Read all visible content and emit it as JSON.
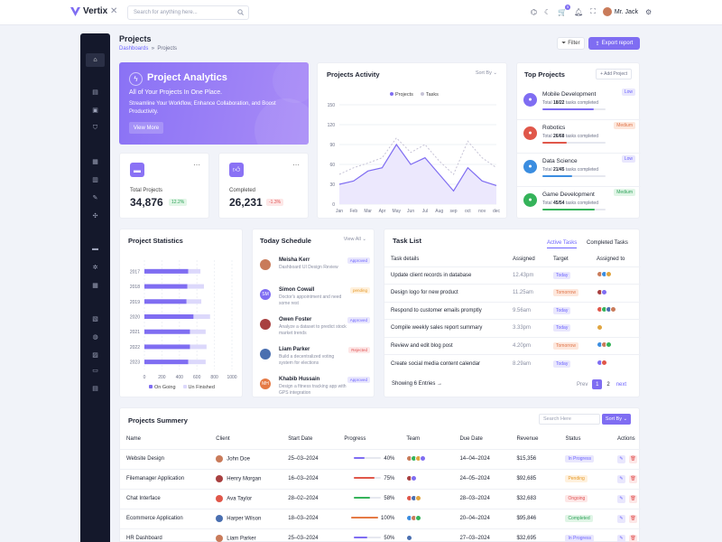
{
  "app": {
    "name": "Vertix",
    "search_placeholder": "Search for anything here...",
    "user": "Mr. Jack",
    "cart_count": "5"
  },
  "page": {
    "title": "Projects",
    "crumb_root": "Dashboards",
    "crumb_current": "Projects",
    "filter": "Filter",
    "export": "Export report"
  },
  "hero": {
    "title": "Project Analytics",
    "subtitle": "All of Your Projects In One Place.",
    "desc": "Streamline Your Workflow, Enhance Collaboration, and Boost Productivity.",
    "button": "View More"
  },
  "stats": [
    {
      "label": "Total Projects",
      "value": "34,876",
      "badge": "12.2%",
      "trend": "up"
    },
    {
      "label": "Completed",
      "value": "26,231",
      "badge": "-1.3%",
      "trend": "down"
    }
  ],
  "activity": {
    "title": "Projects Activity",
    "sort": "Sort By",
    "legend": [
      "Projects",
      "Tasks"
    ]
  },
  "chart_data": [
    {
      "type": "area",
      "title": "Projects Activity",
      "categories": [
        "Jan",
        "Feb",
        "Mar",
        "Apr",
        "May",
        "Jun",
        "Jul",
        "Aug",
        "sep",
        "oct",
        "nov",
        "dec"
      ],
      "ylim": [
        0,
        150
      ],
      "yticks": [
        0,
        30,
        60,
        90,
        120,
        150
      ],
      "series": [
        {
          "name": "Projects",
          "values": [
            30,
            35,
            50,
            55,
            90,
            60,
            70,
            45,
            20,
            55,
            35,
            28
          ],
          "color": "#7f6df2"
        },
        {
          "name": "Tasks",
          "values": [
            45,
            55,
            62,
            70,
            100,
            78,
            90,
            65,
            45,
            95,
            70,
            55
          ],
          "color": "#c6c3d6"
        }
      ],
      "legend": "top",
      "grid": true
    },
    {
      "type": "bar",
      "title": "Project Statistics",
      "orientation": "horizontal",
      "categories": [
        "2017",
        "2018",
        "2019",
        "2020",
        "2021",
        "2022",
        "2023"
      ],
      "xlim": [
        0,
        1000
      ],
      "xticks": [
        0,
        200,
        400,
        600,
        800,
        1000
      ],
      "series": [
        {
          "name": "On Going",
          "values": [
            500,
            490,
            480,
            560,
            520,
            520,
            500
          ],
          "color": "#7f6df2"
        },
        {
          "name": "Un Finished",
          "values": [
            640,
            680,
            650,
            750,
            700,
            710,
            700
          ],
          "color": "#dcd8fb"
        }
      ],
      "legend": "bottom",
      "grid": true
    }
  ],
  "top_projects": {
    "title": "Top Projects",
    "add": "+ Add Project",
    "items": [
      {
        "name": "Mobile Development",
        "total": "Total",
        "done": "18/22",
        "suffix": "tasks completed",
        "badge": "Low",
        "progress": 0.82,
        "color": "#7f6df2",
        "icon": "phone-icon"
      },
      {
        "name": "Robotics",
        "total": "Total",
        "done": "26/68",
        "suffix": "tasks completed",
        "badge": "Medium",
        "progress": 0.38,
        "color": "#e0574a",
        "icon": "robot-icon"
      },
      {
        "name": "Data Science",
        "total": "Total",
        "done": "21/45",
        "suffix": "tasks completed",
        "badge": "Low",
        "progress": 0.47,
        "color": "#3b8de0",
        "icon": "data-icon"
      },
      {
        "name": "Game Development",
        "total": "Total",
        "done": "45/54",
        "suffix": "tasks completed",
        "badge": "Medium",
        "progress": 0.83,
        "color": "#35b35a",
        "icon": "gamepad-icon"
      }
    ]
  },
  "stats_card": {
    "title": "Project Statistics",
    "legend": [
      "On Going",
      "Un Finished"
    ]
  },
  "schedule": {
    "title": "Today Schedule",
    "view": "View All",
    "items": [
      {
        "name": "Meisha Kerr",
        "desc": "Dashboard UI Design Review",
        "status": "Approved",
        "initials": "",
        "color": "#c97b5a"
      },
      {
        "name": "Simon Cowall",
        "desc": "Doctor's appointment and need some rest",
        "status": "pending",
        "initials": "SM",
        "color": "#7f6df2"
      },
      {
        "name": "Owen Foster",
        "desc": "Analyze a dataset to predict stock market trends",
        "status": "Approved",
        "initials": "",
        "color": "#a84040"
      },
      {
        "name": "Liam Parker",
        "desc": "Build a decentralized voting system for elections",
        "status": "Rejected",
        "initials": "",
        "color": "#4a6fb0"
      },
      {
        "name": "Khabib Hussain",
        "desc": "Design a fitness tracking app with GPS integration",
        "status": "Approved",
        "initials": "MH",
        "color": "#e57a45"
      }
    ]
  },
  "tasks": {
    "title": "Task List",
    "tab_active": "Active Tasks",
    "tab_other": "Completed Tasks",
    "headers": [
      "Task details",
      "Assigned",
      "Target",
      "Assigned to"
    ],
    "rows": [
      {
        "task": "Update client records in database",
        "time": "12.43pm",
        "target": "Today"
      },
      {
        "task": "Design logo for new product",
        "time": "11.25am",
        "target": "Tomorrow"
      },
      {
        "task": "Respond to customer emails promptly",
        "time": "9.56am",
        "target": "Today"
      },
      {
        "task": "Compile weekly sales report summary",
        "time": "3.33pm",
        "target": "Today"
      },
      {
        "task": "Review and edit blog post",
        "time": "4.20pm",
        "target": "Tomorrow"
      },
      {
        "task": "Create social media content calendar",
        "time": "8.29am",
        "target": "Today"
      }
    ],
    "showing": "Showing 6 Entries",
    "prev": "Prev",
    "next": "next",
    "pages": [
      "1",
      "2"
    ]
  },
  "summary": {
    "title": "Projects Summery",
    "search_placeholder": "Search Here",
    "sort": "Sort By",
    "headers": [
      "Name",
      "Client",
      "Start Date",
      "Progress",
      "Team",
      "Due Date",
      "Revenue",
      "Status",
      "Actions"
    ],
    "rows": [
      {
        "name": "Website Design",
        "client": "John Doe",
        "start": "25–03–2024",
        "progress": "40%",
        "pval": 0.4,
        "pcolor": "#7f6df2",
        "due": "14–04–2024",
        "revenue": "$15,356",
        "status": "In Progress"
      },
      {
        "name": "Filemanager Application",
        "client": "Henry Morgan",
        "start": "16–03–2024",
        "progress": "75%",
        "pval": 0.75,
        "pcolor": "#e0574a",
        "due": "24–05–2024",
        "revenue": "$92,685",
        "status": "Pending"
      },
      {
        "name": "Chat Interface",
        "client": "Ava Taylor",
        "start": "28–02–2024",
        "progress": "58%",
        "pval": 0.58,
        "pcolor": "#35b35a",
        "due": "28–03–2024",
        "revenue": "$32,683",
        "status": "Ongoing"
      },
      {
        "name": "Ecommerce Application",
        "client": "Harper Wilson",
        "start": "18–03–2024",
        "progress": "100%",
        "pval": 1.0,
        "pcolor": "#e57a45",
        "due": "20–04–2024",
        "revenue": "$95,846",
        "status": "Completed"
      },
      {
        "name": "HR Dashboard",
        "client": "Liam Parker",
        "start": "25–03–2024",
        "progress": "50%",
        "pval": 0.5,
        "pcolor": "#7f6df2",
        "due": "27–03–2024",
        "revenue": "$32,695",
        "status": "In Progress"
      }
    ]
  }
}
